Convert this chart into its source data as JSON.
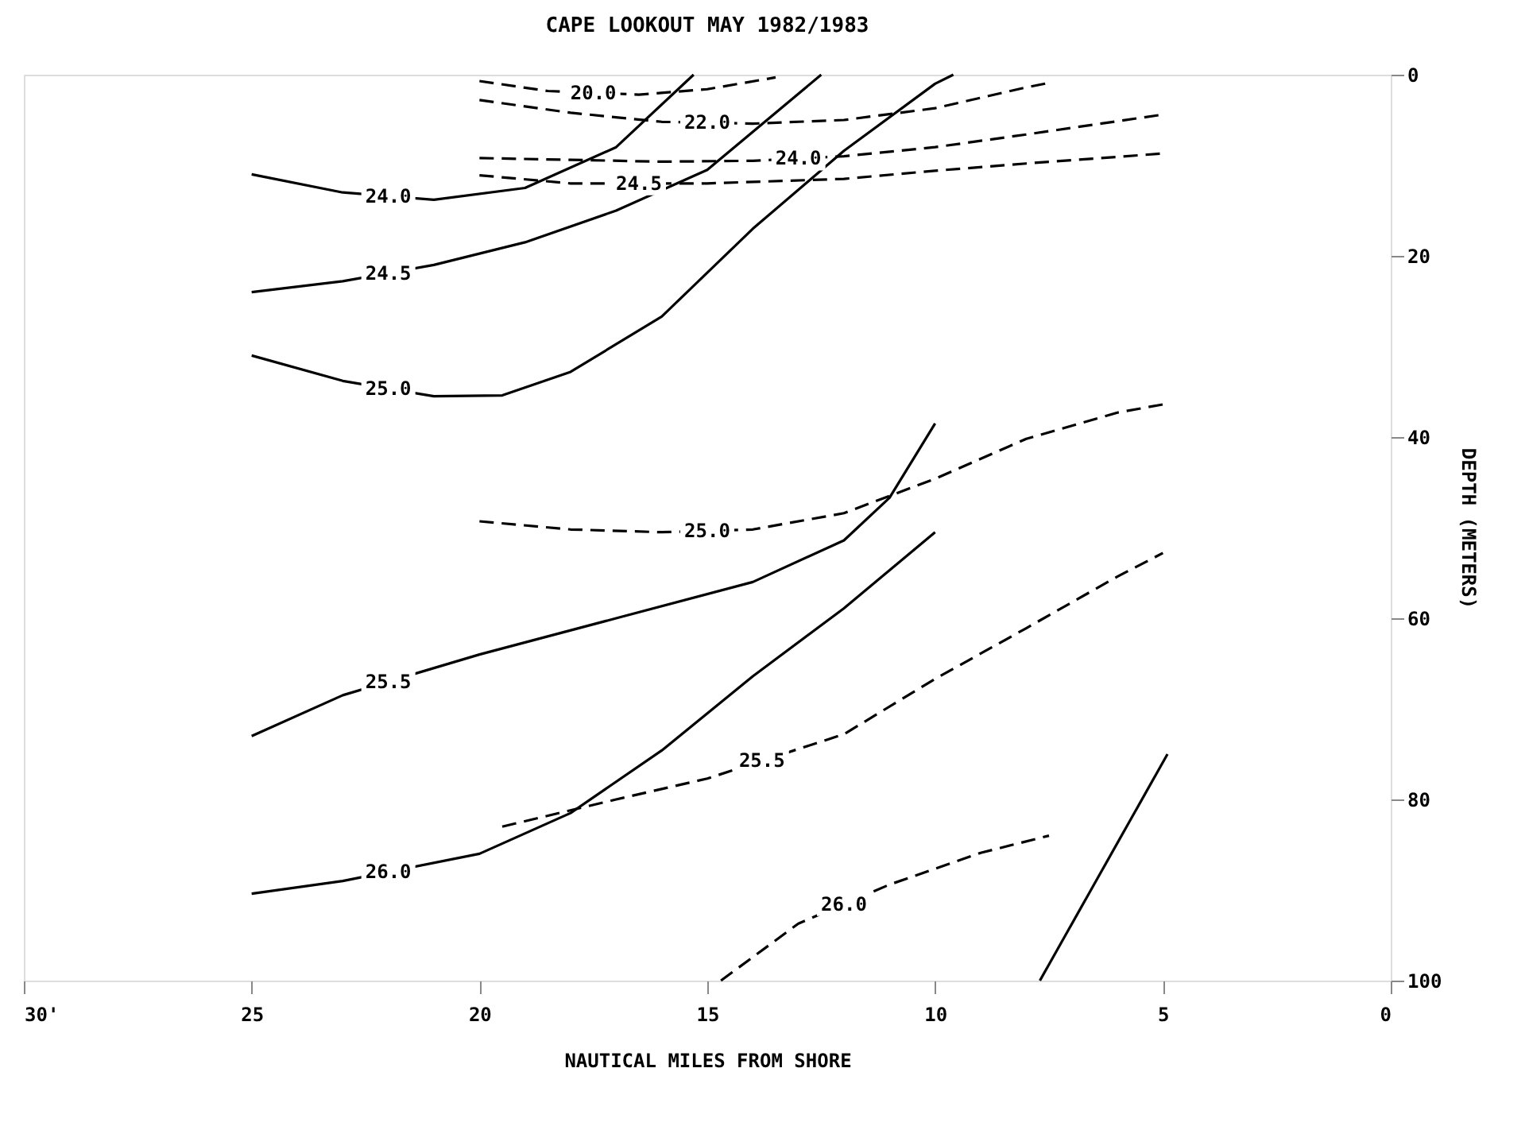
{
  "chart_data": {
    "type": "line",
    "title": "CAPE LOOKOUT   MAY 1982/1983",
    "xlabel": "NAUTICAL MILES FROM SHORE",
    "ylabel": "DEPTH (METERS)",
    "xlim": [
      30,
      0
    ],
    "xticks": [
      {
        "value": 30,
        "label": "30'"
      },
      25,
      20,
      15,
      10,
      5,
      0
    ],
    "ylim": [
      100,
      0
    ],
    "yticks": [
      0,
      20,
      40,
      60,
      80,
      100
    ],
    "grid": false,
    "color": "#000000",
    "series": [
      {
        "line_style": "solid",
        "x": [
          25,
          23,
          21,
          19,
          17,
          15.3
        ],
        "values": [
          11,
          13,
          13.8,
          12.5,
          8,
          0
        ]
      },
      {
        "line_style": "solid",
        "x": [
          25,
          23,
          21,
          19,
          17,
          15,
          12.5
        ],
        "values": [
          24,
          22.8,
          21,
          18.5,
          15,
          10.5,
          0
        ]
      },
      {
        "line_style": "solid",
        "x": [
          25,
          23,
          21,
          19.5,
          18,
          16,
          14,
          12,
          10,
          9.6
        ],
        "values": [
          31,
          33.8,
          35.5,
          35.4,
          32.8,
          26.7,
          17,
          8.4,
          1,
          0
        ]
      },
      {
        "line_style": "solid",
        "x": [
          25,
          23,
          20,
          17,
          14,
          12,
          11,
          10
        ],
        "values": [
          73,
          68.5,
          64,
          60,
          56,
          51.4,
          46.7,
          38.5
        ]
      },
      {
        "line_style": "solid",
        "x": [
          25,
          23,
          20,
          18,
          16,
          14,
          12,
          10
        ],
        "values": [
          90.4,
          89,
          86,
          81.5,
          74.6,
          66.4,
          58.9,
          50.5
        ]
      },
      {
        "line_style": "solid",
        "x": [
          7.7,
          4.9
        ],
        "values": [
          100,
          75
        ]
      },
      {
        "line_style": "dashed",
        "x": [
          20,
          18.5,
          16.5,
          15,
          13.5
        ],
        "values": [
          0.7,
          1.8,
          2.2,
          1.6,
          0.3
        ]
      },
      {
        "line_style": "dashed",
        "x": [
          20,
          18,
          16,
          14,
          12,
          10,
          8,
          7.5
        ],
        "values": [
          2.8,
          4.2,
          5.2,
          5.4,
          5,
          3.7,
          1.4,
          0.9
        ]
      },
      {
        "line_style": "dashed",
        "x": [
          20,
          18,
          16,
          14,
          12,
          10,
          8,
          5
        ],
        "values": [
          9.2,
          9.4,
          9.6,
          9.5,
          9,
          8,
          6.6,
          4.4
        ]
      },
      {
        "line_style": "dashed",
        "x": [
          20,
          18,
          15,
          12,
          10,
          8,
          5
        ],
        "values": [
          11.1,
          12,
          12,
          11.5,
          10.6,
          9.8,
          8.7
        ]
      },
      {
        "line_style": "dashed",
        "x": [
          20,
          18,
          16,
          14,
          12,
          10,
          8,
          6,
          5
        ],
        "values": [
          49.3,
          50.2,
          50.5,
          50.2,
          48.4,
          44.6,
          40.2,
          37.3,
          36.4
        ]
      },
      {
        "line_style": "dashed",
        "x": [
          19.5,
          17,
          15,
          12,
          10,
          8,
          6,
          5
        ],
        "values": [
          83,
          80,
          77.7,
          72.8,
          66.7,
          61.1,
          55.4,
          52.8
        ]
      },
      {
        "line_style": "dashed",
        "x": [
          14.7,
          13,
          11,
          9,
          7.5
        ],
        "values": [
          100,
          93.7,
          89.4,
          85.9,
          84
        ]
      }
    ],
    "annotations": [
      {
        "text": "24.0",
        "x": 22,
        "y": 13.4
      },
      {
        "text": "24.5",
        "x": 22,
        "y": 21.9
      },
      {
        "text": "25.0",
        "x": 22,
        "y": 34.65
      },
      {
        "text": "25.5",
        "x": 22,
        "y": 67
      },
      {
        "text": "26.0",
        "x": 22,
        "y": 88
      },
      {
        "text": "20.0",
        "x": 17.5,
        "y": 2
      },
      {
        "text": "22.0",
        "x": 15,
        "y": 5.3
      },
      {
        "text": "24.0",
        "x": 13,
        "y": 9.25
      },
      {
        "text": "24.5",
        "x": 16.5,
        "y": 12
      },
      {
        "text": "25.0",
        "x": 15,
        "y": 50.35
      },
      {
        "text": "25.5",
        "x": 13.8,
        "y": 75.7
      },
      {
        "text": "26.0",
        "x": 12,
        "y": 91.55
      }
    ]
  }
}
